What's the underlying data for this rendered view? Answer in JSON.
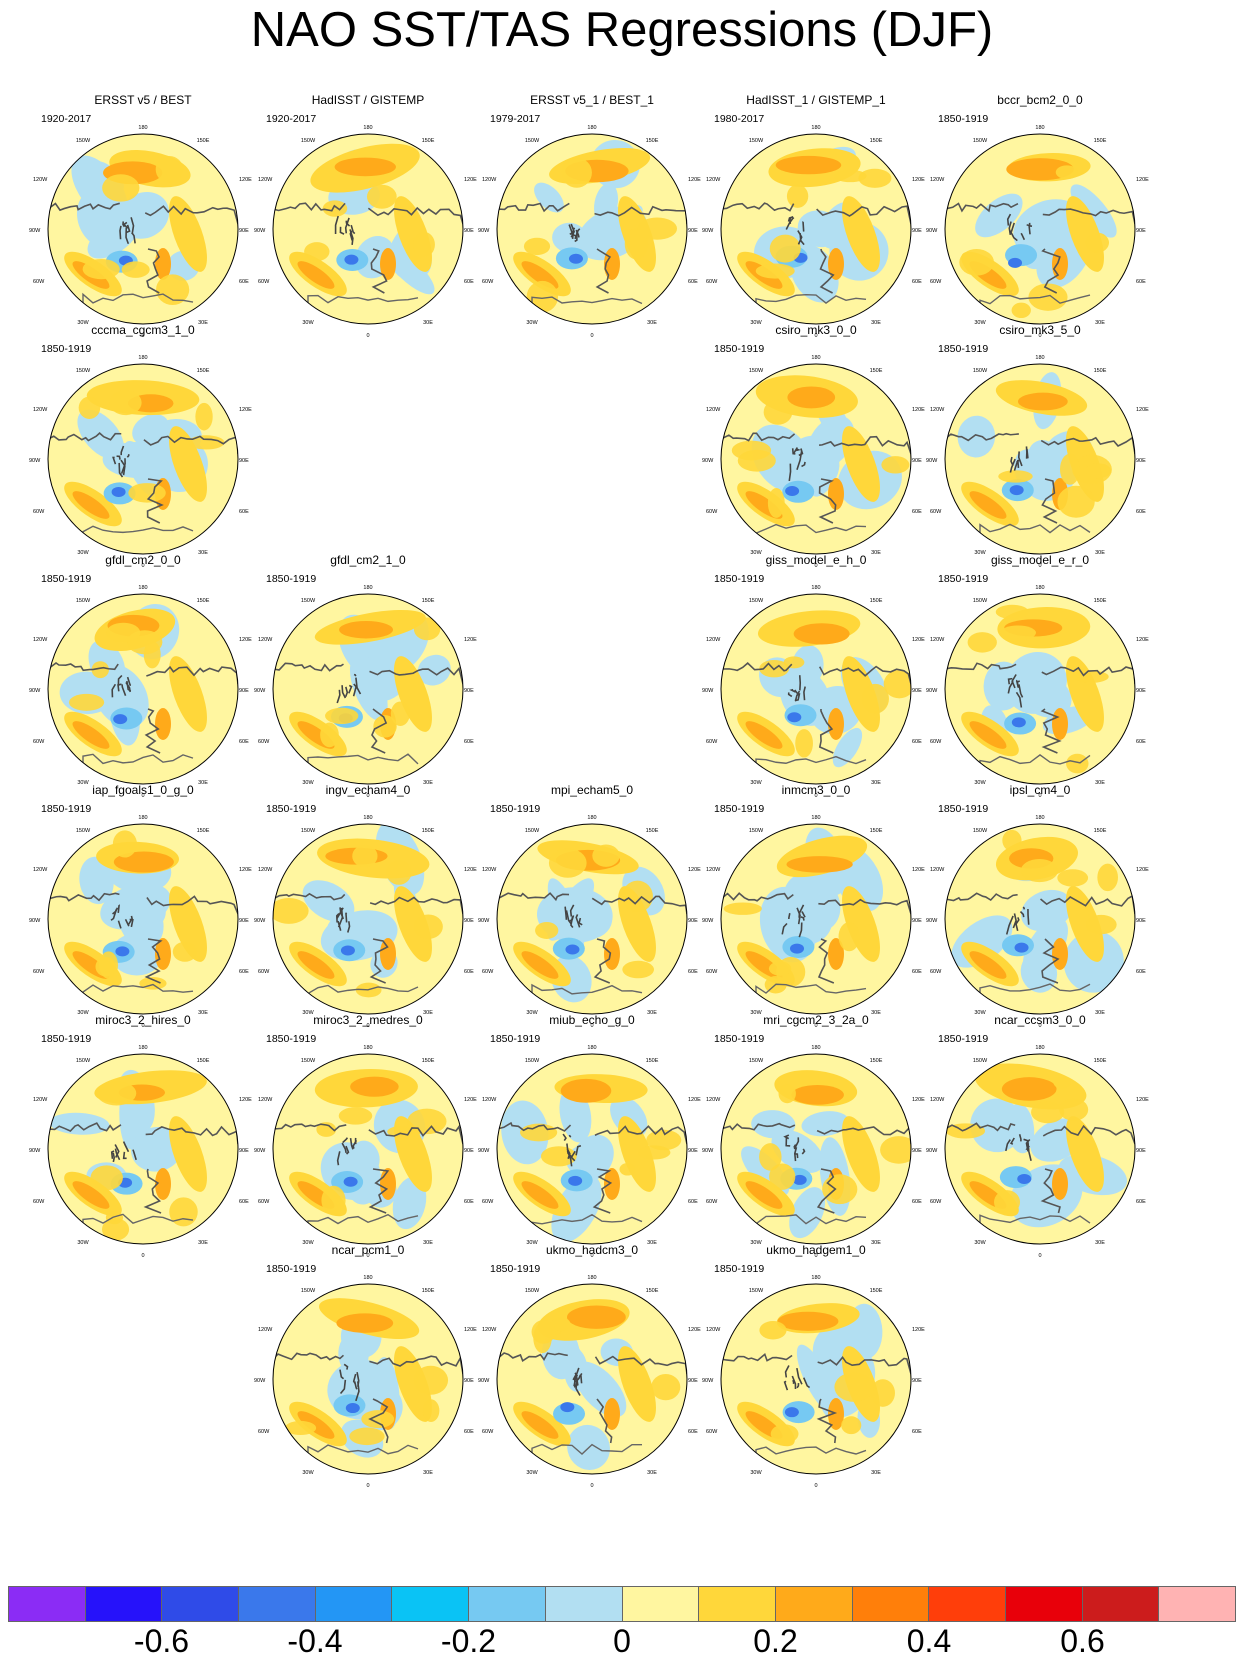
{
  "title": "NAO SST/TAS Regressions (DJF)",
  "map_labels": {
    "top": "180",
    "bottom": "0",
    "upper_left": "150W",
    "upper_right": "150E",
    "left_upper": "120W",
    "right_upper": "120E",
    "left_mid": "90W",
    "right_mid": "90E",
    "left_lower": "60W",
    "right_lower": "60E",
    "lower_left": "30W",
    "lower_right": "30E"
  },
  "panels": [
    {
      "id": "p1",
      "title": "ERSST v5 / BEST",
      "period": "1920-2017",
      "row": 0,
      "col": 0
    },
    {
      "id": "p2",
      "title": "HadISST / GISTEMP",
      "period": "1920-2017",
      "row": 0,
      "col": 1
    },
    {
      "id": "p3",
      "title": "ERSST v5_1 / BEST_1",
      "period": "1979-2017",
      "row": 0,
      "col": 2
    },
    {
      "id": "p4",
      "title": "HadISST_1 / GISTEMP_1",
      "period": "1980-2017",
      "row": 0,
      "col": 3
    },
    {
      "id": "p5",
      "title": "bccr_bcm2_0_0",
      "period": "1850-1919",
      "row": 0,
      "col": 4
    },
    {
      "id": "p6",
      "title": "cccma_cgcm3_1_0",
      "period": "1850-1919",
      "row": 1,
      "col": 0
    },
    {
      "id": "p7",
      "title": "csiro_mk3_0_0",
      "period": "1850-1919",
      "row": 1,
      "col": 3
    },
    {
      "id": "p8",
      "title": "csiro_mk3_5_0",
      "period": "1850-1919",
      "row": 1,
      "col": 4
    },
    {
      "id": "p9",
      "title": "gfdl_cm2_0_0",
      "period": "1850-1919",
      "row": 2,
      "col": 0
    },
    {
      "id": "p10",
      "title": "gfdl_cm2_1_0",
      "period": "1850-1919",
      "row": 2,
      "col": 1
    },
    {
      "id": "p11",
      "title": "giss_model_e_h_0",
      "period": "1850-1919",
      "row": 2,
      "col": 3
    },
    {
      "id": "p12",
      "title": "giss_model_e_r_0",
      "period": "1850-1919",
      "row": 2,
      "col": 4
    },
    {
      "id": "p13",
      "title": "iap_fgoals1_0_g_0",
      "period": "1850-1919",
      "row": 3,
      "col": 0
    },
    {
      "id": "p14",
      "title": "ingv_echam4_0",
      "period": "1850-1919",
      "row": 3,
      "col": 1
    },
    {
      "id": "p15",
      "title": "mpi_echam5_0",
      "period": "1850-1919",
      "row": 3,
      "col": 2
    },
    {
      "id": "p16",
      "title": "inmcm3_0_0",
      "period": "1850-1919",
      "row": 3,
      "col": 3
    },
    {
      "id": "p17",
      "title": "ipsl_cm4_0",
      "period": "1850-1919",
      "row": 3,
      "col": 4
    },
    {
      "id": "p18",
      "title": "miroc3_2_hires_0",
      "period": "1850-1919",
      "row": 4,
      "col": 0
    },
    {
      "id": "p19",
      "title": "miroc3_2_medres_0",
      "period": "1850-1919",
      "row": 4,
      "col": 1
    },
    {
      "id": "p20",
      "title": "miub_echo_g_0",
      "period": "1850-1919",
      "row": 4,
      "col": 2
    },
    {
      "id": "p21",
      "title": "mri_cgcm2_3_2a_0",
      "period": "1850-1919",
      "row": 4,
      "col": 3
    },
    {
      "id": "p22",
      "title": "ncar_ccsm3_0_0",
      "period": "1850-1919",
      "row": 4,
      "col": 4
    },
    {
      "id": "p23",
      "title": "ncar_pcm1_0",
      "period": "1850-1919",
      "row": 5,
      "col": 1
    },
    {
      "id": "p24",
      "title": "ukmo_hadcm3_0",
      "period": "1850-1919",
      "row": 5,
      "col": 2
    },
    {
      "id": "p25",
      "title": "ukmo_hadgem1_0",
      "period": "1850-1919",
      "row": 5,
      "col": 3
    }
  ],
  "colorbar": {
    "colors": [
      "#8b2cf5",
      "#2612fa",
      "#2f4be8",
      "#3a78eb",
      "#2396f5",
      "#0ac3f5",
      "#76c9f2",
      "#b2dff2",
      "#fff6a0",
      "#ffd73a",
      "#ffaa1a",
      "#ff7f0a",
      "#ff3e0a",
      "#e8000a",
      "#cc1c1c",
      "#ffb3b3"
    ],
    "tick_labels": [
      "-0.6",
      "-0.4",
      "-0.2",
      "0",
      "0.2",
      "0.4",
      "0.6"
    ]
  }
}
